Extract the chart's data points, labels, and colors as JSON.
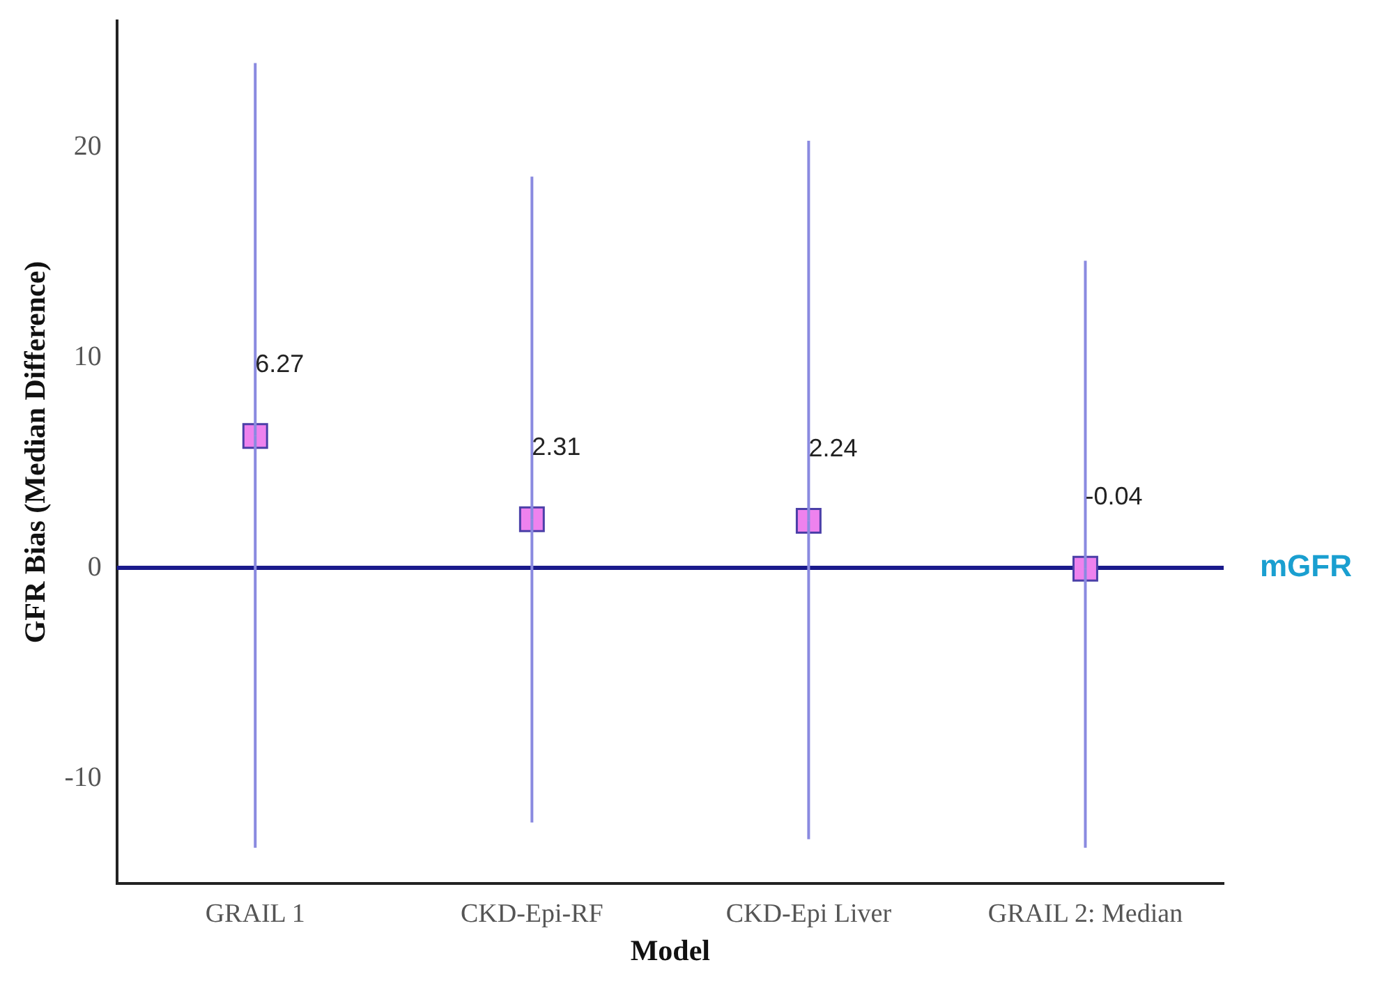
{
  "chart_data": {
    "type": "scatter",
    "xlabel": "Model",
    "ylabel": "GFR Bias (Median Difference)",
    "categories": [
      "GRAIL 1",
      "CKD-Epi-RF",
      "CKD-Epi Liver",
      "GRAIL 2: Median"
    ],
    "series": [
      {
        "color": "#ee82ee",
        "values": [
          6.27,
          2.31,
          2.24,
          -0.04
        ],
        "errors": [
          [
            -13.3,
            24.0
          ],
          [
            -12.1,
            18.6
          ],
          [
            -12.9,
            20.3
          ],
          [
            -13.3,
            14.6
          ]
        ]
      }
    ],
    "data_labels": true,
    "marker": "square",
    "grid": false,
    "legend": false,
    "ylim": [
      -15,
      26
    ],
    "yticks": [
      -10,
      0,
      10,
      20
    ],
    "ref_lines": [
      {
        "axis": "y",
        "value": 0,
        "label": "mGFR",
        "color": "#1a1a8c"
      }
    ]
  }
}
